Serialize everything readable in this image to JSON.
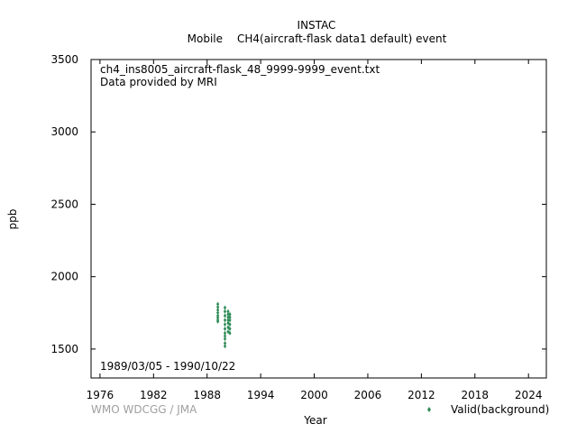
{
  "chart_data": {
    "type": "scatter",
    "title": "INSTAC",
    "subtitle_left": "Mobile",
    "subtitle_right": "CH4(aircraft-flask data1 default) event",
    "file_name": "ch4_ins8005_aircraft-flask_48_9999-9999_event.txt",
    "provider": "Data provided by MRI",
    "date_range": "1989/03/05 - 1990/10/22",
    "xlabel": "Year",
    "ylabel": "ppb",
    "xlim": [
      1975,
      2026
    ],
    "ylim": [
      1300,
      3500
    ],
    "x_ticks": [
      "1976",
      "1982",
      "1988",
      "1994",
      "2000",
      "2006",
      "2012",
      "2018",
      "2024"
    ],
    "y_ticks": [
      "1500",
      "2000",
      "2500",
      "3000",
      "3500"
    ],
    "credit": "WMO WDCGG / JMA",
    "point_color": "#2e8b57",
    "series": [
      {
        "name": "Valid(background)",
        "x": [
          1989.2,
          1989.2,
          1989.2,
          1989.2,
          1989.2,
          1989.2,
          1989.2,
          1989.2,
          1990.0,
          1990.0,
          1990.0,
          1990.0,
          1990.0,
          1990.0,
          1990.0,
          1990.0,
          1990.0,
          1990.0,
          1990.0,
          1990.35,
          1990.35,
          1990.35,
          1990.35,
          1990.35,
          1990.35,
          1990.35,
          1990.55,
          1990.55,
          1990.55,
          1990.55,
          1990.55,
          1990.55
        ],
        "y": [
          1810,
          1790,
          1770,
          1750,
          1730,
          1715,
          1700,
          1690,
          1785,
          1760,
          1730,
          1700,
          1670,
          1640,
          1610,
          1590,
          1570,
          1540,
          1520,
          1760,
          1740,
          1720,
          1700,
          1680,
          1650,
          1620,
          1740,
          1720,
          1700,
          1670,
          1640,
          1610
        ]
      }
    ]
  }
}
